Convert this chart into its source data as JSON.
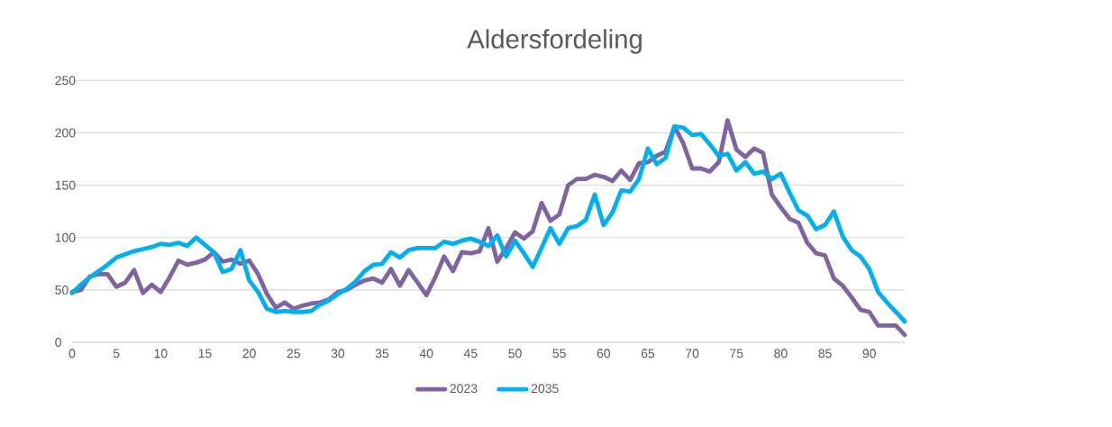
{
  "chart_data": {
    "type": "line",
    "title": "Aldersfordeling",
    "x": [
      0,
      1,
      2,
      3,
      4,
      5,
      6,
      7,
      8,
      9,
      10,
      11,
      12,
      13,
      14,
      15,
      16,
      17,
      18,
      19,
      20,
      21,
      22,
      23,
      24,
      25,
      26,
      27,
      28,
      29,
      30,
      31,
      32,
      33,
      34,
      35,
      36,
      37,
      38,
      39,
      40,
      41,
      42,
      43,
      44,
      45,
      46,
      47,
      48,
      49,
      50,
      51,
      52,
      53,
      54,
      55,
      56,
      57,
      58,
      59,
      60,
      61,
      62,
      63,
      64,
      65,
      66,
      67,
      68,
      69,
      70,
      71,
      72,
      73,
      74,
      75,
      76,
      77,
      78,
      79,
      80,
      81,
      82,
      83,
      84,
      85,
      86,
      87,
      88,
      89,
      90,
      91,
      92,
      93,
      94
    ],
    "series": [
      {
        "name": "2023",
        "color": "#8064a2",
        "values": [
          48,
          50,
          63,
          65,
          65,
          53,
          57,
          69,
          47,
          55,
          48,
          62,
          78,
          74,
          76,
          79,
          86,
          77,
          79,
          75,
          78,
          65,
          46,
          33,
          38,
          32,
          35,
          37,
          38,
          41,
          48,
          50,
          55,
          59,
          61,
          57,
          70,
          54,
          69,
          57,
          45,
          62,
          82,
          68,
          86,
          85,
          87,
          109,
          77,
          90,
          105,
          99,
          106,
          133,
          116,
          122,
          150,
          156,
          156,
          160,
          158,
          154,
          164,
          155,
          171,
          172,
          178,
          182,
          206,
          190,
          166,
          166,
          163,
          172,
          212,
          184,
          177,
          185,
          181,
          141,
          129,
          118,
          114,
          95,
          85,
          83,
          61,
          54,
          43,
          31,
          29,
          16,
          16,
          16,
          7
        ]
      },
      {
        "name": "2035",
        "color": "#00b0f0",
        "values": [
          47,
          55,
          62,
          68,
          74,
          81,
          84,
          87,
          89,
          91,
          94,
          93,
          95,
          92,
          100,
          93,
          86,
          67,
          70,
          88,
          59,
          48,
          32,
          29,
          30,
          29,
          29,
          30,
          36,
          40,
          46,
          51,
          58,
          68,
          74,
          75,
          86,
          81,
          88,
          90,
          90,
          90,
          96,
          94,
          97,
          99,
          96,
          92,
          102,
          82,
          97,
          85,
          72,
          90,
          109,
          94,
          109,
          111,
          117,
          141,
          112,
          124,
          145,
          144,
          156,
          185,
          170,
          176,
          206,
          205,
          198,
          199,
          189,
          178,
          180,
          164,
          172,
          161,
          163,
          156,
          161,
          143,
          126,
          121,
          108,
          112,
          125,
          101,
          88,
          82,
          70,
          48,
          38,
          29,
          20
        ]
      }
    ],
    "xlim": [
      0,
      94
    ],
    "xticks": [
      0,
      5,
      10,
      15,
      20,
      25,
      30,
      35,
      40,
      45,
      50,
      55,
      60,
      65,
      70,
      75,
      80,
      85,
      90
    ],
    "ylim": [
      0,
      250
    ],
    "yticks": [
      0,
      50,
      100,
      150,
      200,
      250
    ],
    "grid": "y",
    "legend": "bottom",
    "marker": "none",
    "line_style": "solid"
  }
}
